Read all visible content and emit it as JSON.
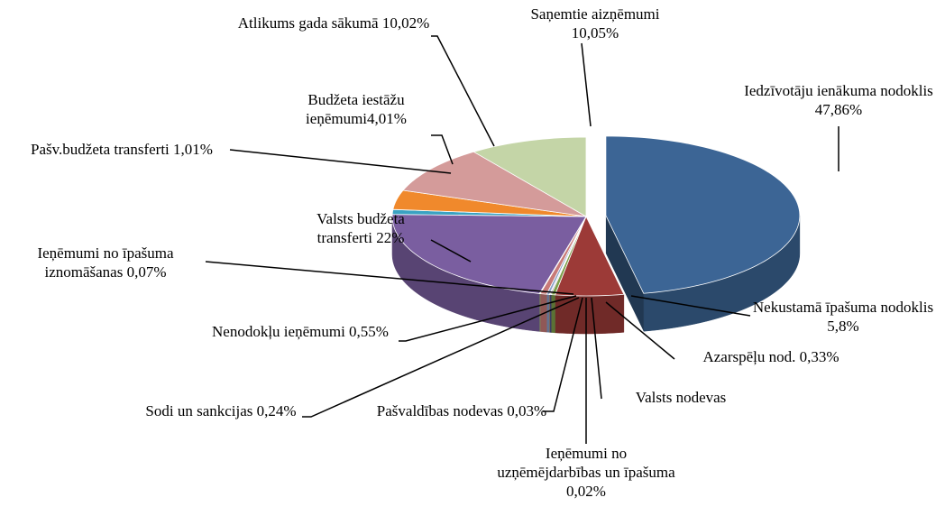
{
  "chart_data": {
    "type": "pie",
    "categories": [
      "Iedzīvotāju ienākuma nodoklis",
      "Nekustamā īpašuma nodoklis",
      "Azarspēļu nod.",
      "Valsts nodevas",
      "Ieņēmumi no uzņēmējdarbības un īpašuma",
      "Pašvaldības nodevas",
      "Sodi un sankcijas",
      "Nenodokļu ieņēmumi",
      "Ieņēmumi no īpašuma iznomāšanas",
      "Valsts budžeta transferti",
      "Pašv.budžeta transferti",
      "Budžeta iestāžu ieņēmumi",
      "Atlikums gada sākumā",
      "Saņemtie aizņēmumi"
    ],
    "values": [
      47.86,
      5.8,
      0.33,
      0.1,
      0.02,
      0.03,
      0.24,
      0.55,
      0.07,
      22,
      1.01,
      4.01,
      10.02,
      10.05
    ],
    "value_labels": [
      "47,86%",
      "5,8%",
      "0,33%",
      null,
      "0,02%",
      "0,03%",
      "0,24%",
      "0,55%",
      "0,07%",
      "22%",
      "1,01%",
      "4,01%",
      "10,02%",
      "10,05%"
    ],
    "colors": [
      "#3c6595",
      "#9c3a37",
      "#7d9f4a",
      "#5f4b85",
      "#2f8fb0",
      "#e07b25",
      "#8aa0c8",
      "#c87a78",
      "#a9c07a",
      "#7a5ea0",
      "#3aa2c2",
      "#f0892c",
      "#d49b9a",
      "#c4d5a7"
    ]
  }
}
